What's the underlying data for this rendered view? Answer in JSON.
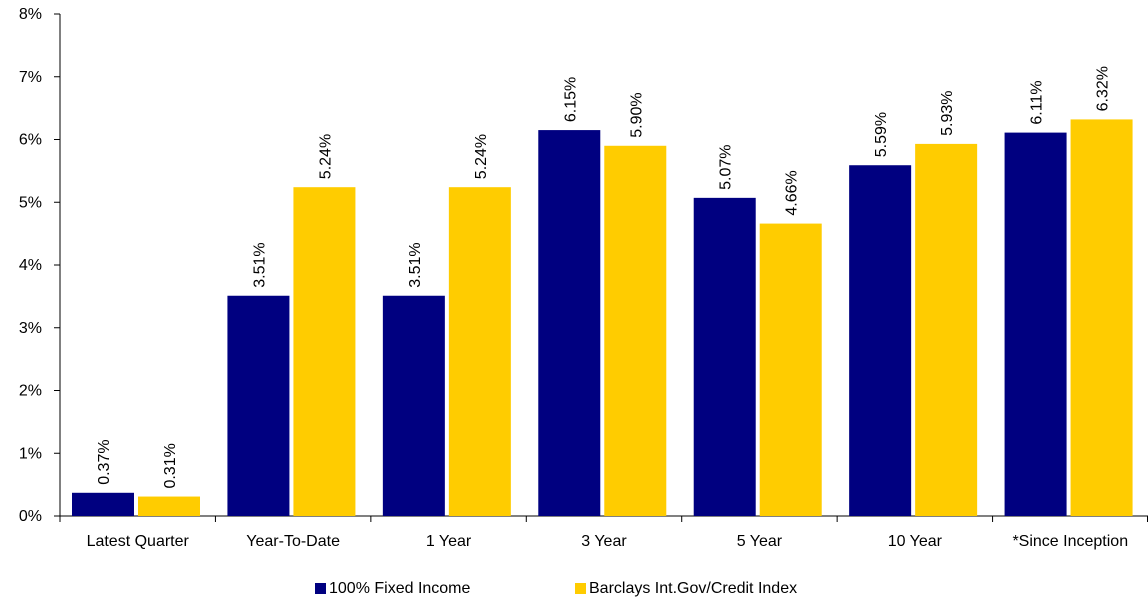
{
  "chart_data": {
    "type": "bar",
    "categories": [
      "Latest Quarter",
      "Year-To-Date",
      "1 Year",
      "3 Year",
      "5 Year",
      "10 Year",
      "*Since Inception"
    ],
    "series": [
      {
        "name": "100% Fixed Income",
        "color": "#000080",
        "values": [
          0.37,
          3.51,
          3.51,
          6.15,
          5.07,
          5.59,
          6.11
        ],
        "labels": [
          "0.37%",
          "3.51%",
          "3.51%",
          "6.15%",
          "5.07%",
          "5.59%",
          "6.11%"
        ]
      },
      {
        "name": "Barclays Int.Gov/Credit Index",
        "color": "#FFCC00",
        "values": [
          0.31,
          5.24,
          5.24,
          5.9,
          4.66,
          5.93,
          6.32
        ],
        "labels": [
          "0.31%",
          "5.24%",
          "5.24%",
          "5.90%",
          "4.66%",
          "5.93%",
          "6.32%"
        ]
      }
    ],
    "ylim": [
      0,
      8
    ],
    "yticks": [
      0,
      1,
      2,
      3,
      4,
      5,
      6,
      7,
      8
    ],
    "ytick_labels": [
      "0%",
      "1%",
      "2%",
      "3%",
      "4%",
      "5%",
      "6%",
      "7%",
      "8%"
    ],
    "grid": false,
    "legend_position": "bottom-center"
  }
}
